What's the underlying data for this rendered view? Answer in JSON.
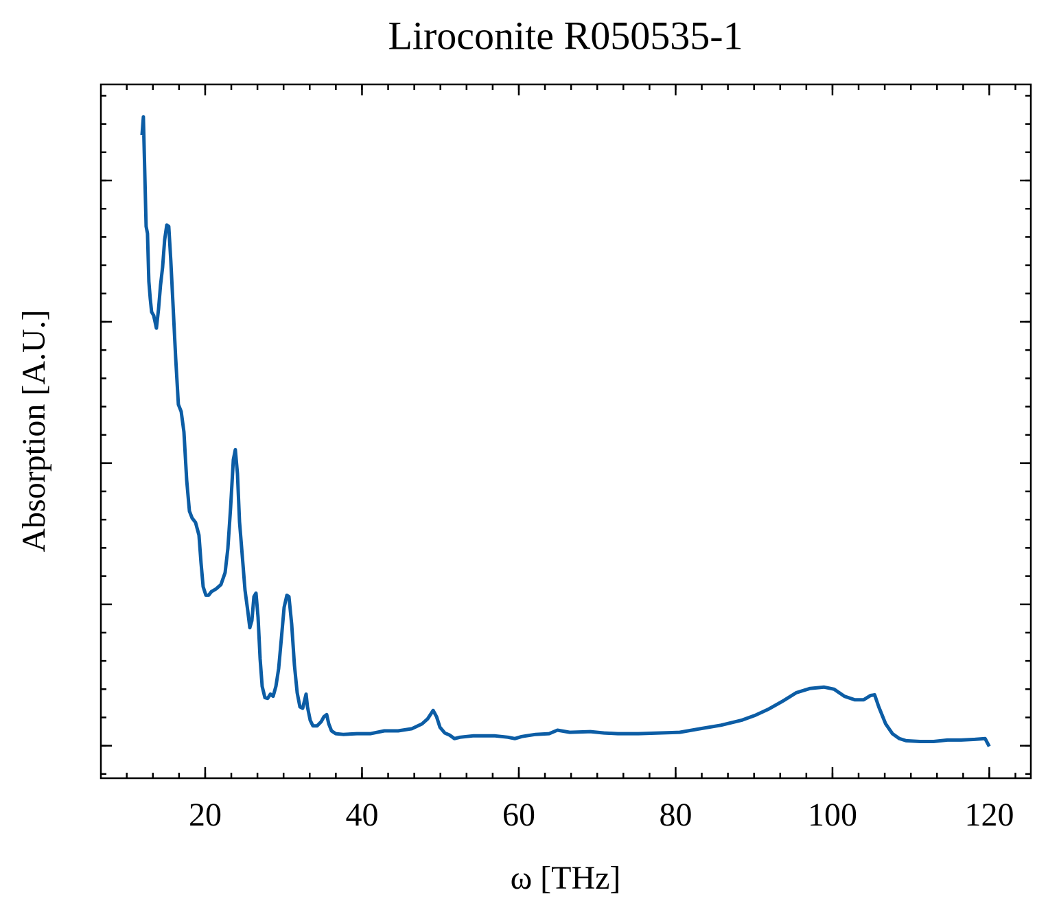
{
  "chart_data": {
    "type": "line",
    "title": "Liroconite R050535-1",
    "xlabel": "ω [THz]",
    "ylabel": "Absorption [A.U.]",
    "xlim": [
      6.7,
      125.3
    ],
    "xticks": [
      20,
      40,
      60,
      80,
      100,
      120
    ],
    "ylim": [
      -0.046,
      0.936
    ],
    "yticks": [
      0,
      0.2,
      0.4,
      0.6,
      0.8
    ],
    "grid": false,
    "series": [
      {
        "color": "#0C5DA5",
        "x": [
          11.94,
          12.12,
          12.29,
          12.47,
          12.64,
          12.82,
          12.99,
          13.17,
          13.43,
          13.78,
          14.05,
          14.31,
          14.57,
          14.83,
          15.1,
          15.36,
          15.62,
          15.88,
          16.23,
          16.58,
          16.94,
          17.29,
          17.64,
          17.99,
          18.34,
          18.77,
          19.21,
          19.47,
          19.74,
          20.09,
          20.44,
          20.79,
          21.4,
          22.01,
          22.54,
          22.89,
          23.24,
          23.59,
          23.85,
          24.12,
          24.38,
          24.73,
          25.08,
          25.43,
          25.69,
          25.96,
          26.22,
          26.48,
          26.74,
          27.01,
          27.27,
          27.62,
          27.97,
          28.32,
          28.67,
          29.02,
          29.37,
          29.72,
          30.07,
          30.42,
          30.68,
          31.03,
          31.38,
          31.73,
          32.08,
          32.43,
          32.7,
          32.87,
          33.05,
          33.4,
          33.75,
          34.27,
          34.8,
          35.15,
          35.5,
          35.76,
          36.11,
          36.64,
          37.6,
          39.35,
          41.1,
          42.85,
          44.61,
          46.36,
          47.67,
          48.37,
          49.07,
          49.51,
          49.95,
          50.56,
          51.17,
          51.79,
          52.49,
          54.24,
          56.87,
          58.62,
          59.49,
          60.37,
          62.12,
          63.87,
          64.92,
          66.5,
          69.12,
          70.88,
          72.63,
          75.25,
          77.88,
          80.51,
          83.13,
          85.76,
          88.39,
          90.14,
          91.89,
          93.64,
          95.39,
          97.15,
          98.9,
          100.21,
          101.52,
          102.84,
          103.98,
          104.85,
          105.38,
          105.9,
          106.78,
          107.65,
          108.53,
          109.4,
          111.16,
          112.91,
          114.66,
          116.41,
          118.16,
          119.47,
          120.0
        ],
        "values": [
          0.864,
          0.89,
          0.813,
          0.735,
          0.725,
          0.657,
          0.633,
          0.614,
          0.609,
          0.591,
          0.618,
          0.652,
          0.677,
          0.716,
          0.737,
          0.735,
          0.686,
          0.628,
          0.55,
          0.483,
          0.473,
          0.444,
          0.376,
          0.332,
          0.322,
          0.316,
          0.298,
          0.259,
          0.225,
          0.213,
          0.213,
          0.218,
          0.222,
          0.228,
          0.245,
          0.279,
          0.337,
          0.405,
          0.419,
          0.385,
          0.317,
          0.269,
          0.22,
          0.191,
          0.167,
          0.177,
          0.211,
          0.216,
          0.182,
          0.123,
          0.084,
          0.068,
          0.067,
          0.073,
          0.07,
          0.084,
          0.109,
          0.152,
          0.196,
          0.213,
          0.211,
          0.172,
          0.114,
          0.075,
          0.055,
          0.053,
          0.065,
          0.073,
          0.055,
          0.036,
          0.028,
          0.028,
          0.034,
          0.041,
          0.044,
          0.031,
          0.021,
          0.017,
          0.016,
          0.017,
          0.017,
          0.021,
          0.021,
          0.024,
          0.031,
          0.038,
          0.05,
          0.041,
          0.026,
          0.018,
          0.015,
          0.01,
          0.012,
          0.014,
          0.014,
          0.012,
          0.01,
          0.013,
          0.016,
          0.017,
          0.022,
          0.019,
          0.02,
          0.018,
          0.017,
          0.017,
          0.018,
          0.019,
          0.024,
          0.029,
          0.036,
          0.043,
          0.052,
          0.063,
          0.075,
          0.081,
          0.083,
          0.08,
          0.07,
          0.065,
          0.065,
          0.071,
          0.072,
          0.055,
          0.031,
          0.017,
          0.01,
          0.007,
          0.006,
          0.006,
          0.008,
          0.008,
          0.009,
          0.01,
          -0.001
        ]
      }
    ]
  }
}
